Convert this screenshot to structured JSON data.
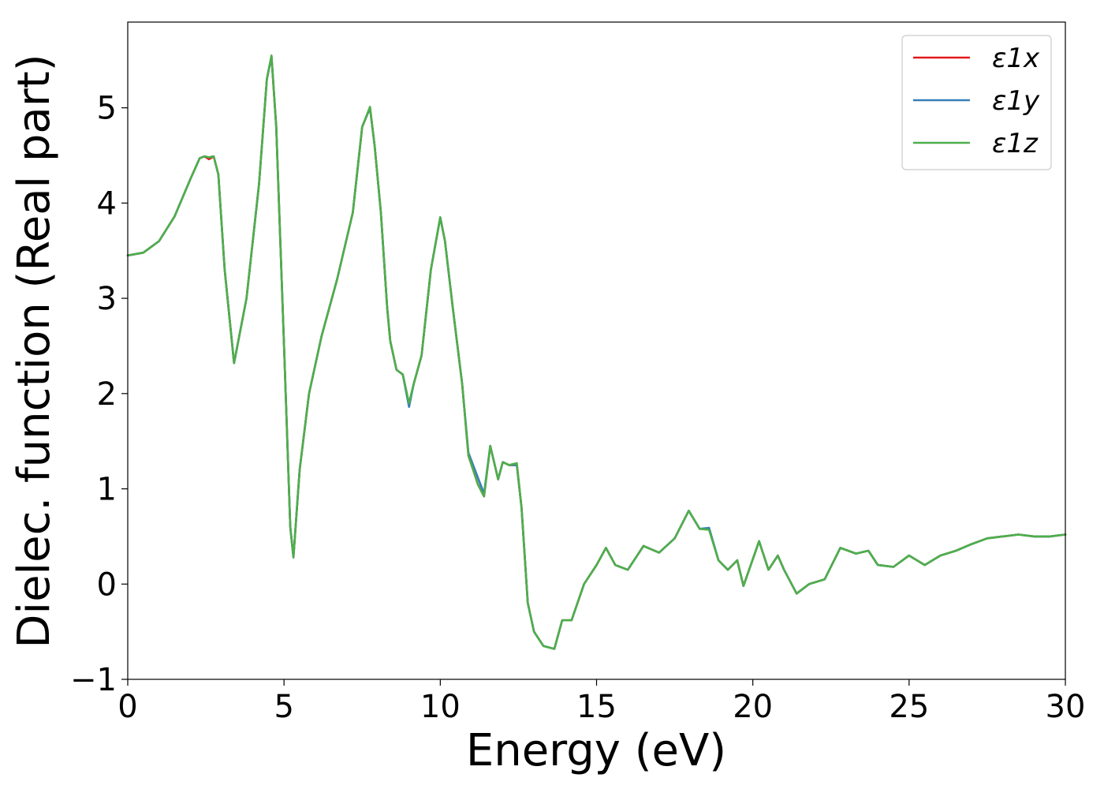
{
  "chart_data": {
    "type": "line",
    "title": "",
    "xlabel": "Energy (eV)",
    "ylabel": "Dielec. function (Real part)",
    "xlim": [
      0,
      30
    ],
    "ylim": [
      -1,
      5.9
    ],
    "xticks": [
      0,
      5,
      10,
      15,
      20,
      25,
      30
    ],
    "xtick_labels": [
      "0",
      "5",
      "10",
      "15",
      "20",
      "25",
      "30"
    ],
    "yticks": [
      -1,
      0,
      1,
      2,
      3,
      4,
      5
    ],
    "ytick_labels": [
      "−1",
      "0",
      "1",
      "2",
      "3",
      "4",
      "5"
    ],
    "grid": false,
    "legend_position": "top-right",
    "series": [
      {
        "name": "ε1x",
        "color": "#e41a1c",
        "x": [
          0,
          0.5,
          1,
          1.5,
          2,
          2.3,
          2.45,
          2.6,
          2.75,
          2.9,
          3.1,
          3.4,
          3.8,
          4.2,
          4.45,
          4.6,
          4.75,
          5.0,
          5.2,
          5.3,
          5.5,
          5.8,
          6.2,
          6.7,
          7.2,
          7.5,
          7.75,
          7.9,
          8.1,
          8.3,
          8.4,
          8.6,
          8.8,
          9.0,
          9.15,
          9.4,
          9.7,
          10.0,
          10.15,
          10.4,
          10.7,
          10.9,
          11.2,
          11.4,
          11.6,
          11.85,
          12.0,
          12.2,
          12.45,
          12.6,
          12.8,
          13.0,
          13.3,
          13.65,
          13.9,
          14.2,
          14.6,
          15.0,
          15.3,
          15.6,
          16.0,
          16.5,
          17.0,
          17.5,
          17.95,
          18.3,
          18.6,
          18.9,
          19.2,
          19.5,
          19.7,
          20.2,
          20.5,
          20.8,
          21.0,
          21.4,
          21.8,
          22.3,
          22.8,
          23.3,
          23.7,
          24.0,
          24.5,
          25.0,
          25.5,
          26.0,
          26.5,
          27.0,
          27.5,
          28.0,
          28.5,
          29.0,
          29.5,
          30.0
        ],
        "y": [
          3.45,
          3.48,
          3.6,
          3.86,
          4.25,
          4.47,
          4.49,
          4.46,
          4.49,
          4.3,
          3.3,
          2.32,
          3.0,
          4.2,
          5.3,
          5.54,
          4.8,
          2.5,
          0.6,
          0.28,
          1.2,
          2.0,
          2.6,
          3.2,
          3.9,
          4.8,
          5.0,
          4.6,
          3.9,
          2.9,
          2.55,
          2.25,
          2.2,
          1.88,
          2.1,
          2.4,
          3.3,
          3.85,
          3.6,
          2.9,
          2.1,
          1.35,
          1.05,
          0.92,
          1.45,
          1.1,
          1.28,
          1.25,
          1.25,
          0.8,
          -0.2,
          -0.5,
          -0.65,
          -0.68,
          -0.38,
          -0.38,
          0.0,
          0.2,
          0.38,
          0.2,
          0.15,
          0.4,
          0.33,
          0.48,
          0.77,
          0.58,
          0.58,
          0.25,
          0.15,
          0.25,
          -0.02,
          0.45,
          0.15,
          0.3,
          0.15,
          -0.1,
          0.0,
          0.05,
          0.38,
          0.32,
          0.35,
          0.2,
          0.18,
          0.3,
          0.2,
          0.3,
          0.35,
          0.42,
          0.48,
          0.5,
          0.52,
          0.5,
          0.5,
          0.52
        ]
      },
      {
        "name": "ε1y",
        "color": "#377eb8",
        "x": [
          0,
          0.5,
          1,
          1.5,
          2,
          2.3,
          2.45,
          2.6,
          2.75,
          2.9,
          3.1,
          3.4,
          3.8,
          4.2,
          4.45,
          4.6,
          4.75,
          5.0,
          5.2,
          5.3,
          5.5,
          5.8,
          6.2,
          6.7,
          7.2,
          7.5,
          7.75,
          7.9,
          8.1,
          8.3,
          8.4,
          8.6,
          8.8,
          9.0,
          9.15,
          9.4,
          9.7,
          10.0,
          10.15,
          10.4,
          10.7,
          10.9,
          11.2,
          11.4,
          11.6,
          11.85,
          12.0,
          12.2,
          12.45,
          12.6,
          12.8,
          13.0,
          13.3,
          13.65,
          13.9,
          14.2,
          14.6,
          15.0,
          15.3,
          15.6,
          16.0,
          16.5,
          17.0,
          17.5,
          17.95,
          18.3,
          18.6,
          18.9,
          19.2,
          19.5,
          19.7,
          20.2,
          20.5,
          20.8,
          21.0,
          21.4,
          21.8,
          22.3,
          22.8,
          23.3,
          23.7,
          24.0,
          24.5,
          25.0,
          25.5,
          26.0,
          26.5,
          27.0,
          27.5,
          28.0,
          28.5,
          29.0,
          29.5,
          30.0
        ],
        "y": [
          3.45,
          3.48,
          3.6,
          3.86,
          4.25,
          4.47,
          4.49,
          4.48,
          4.49,
          4.3,
          3.3,
          2.32,
          3.0,
          4.2,
          5.3,
          5.54,
          4.8,
          2.5,
          0.6,
          0.28,
          1.2,
          2.0,
          2.6,
          3.2,
          3.9,
          4.8,
          5.0,
          4.6,
          3.9,
          2.9,
          2.55,
          2.25,
          2.2,
          1.86,
          2.1,
          2.4,
          3.3,
          3.85,
          3.6,
          2.9,
          2.1,
          1.38,
          1.12,
          0.95,
          1.45,
          1.1,
          1.28,
          1.25,
          1.25,
          0.8,
          -0.2,
          -0.5,
          -0.65,
          -0.68,
          -0.38,
          -0.38,
          0.0,
          0.2,
          0.38,
          0.2,
          0.15,
          0.4,
          0.33,
          0.48,
          0.77,
          0.58,
          0.59,
          0.25,
          0.15,
          0.25,
          -0.02,
          0.45,
          0.15,
          0.3,
          0.15,
          -0.1,
          0.0,
          0.05,
          0.38,
          0.32,
          0.35,
          0.2,
          0.18,
          0.3,
          0.2,
          0.3,
          0.35,
          0.42,
          0.48,
          0.5,
          0.52,
          0.5,
          0.5,
          0.52
        ]
      },
      {
        "name": "ε1z",
        "color": "#4daf4a",
        "x": [
          0,
          0.5,
          1,
          1.5,
          2,
          2.3,
          2.45,
          2.6,
          2.75,
          2.9,
          3.1,
          3.4,
          3.8,
          4.2,
          4.45,
          4.6,
          4.75,
          5.0,
          5.2,
          5.3,
          5.5,
          5.8,
          6.2,
          6.7,
          7.2,
          7.5,
          7.75,
          7.9,
          8.1,
          8.3,
          8.4,
          8.6,
          8.8,
          9.0,
          9.15,
          9.4,
          9.7,
          10.0,
          10.15,
          10.4,
          10.7,
          10.9,
          11.2,
          11.4,
          11.6,
          11.85,
          12.0,
          12.2,
          12.45,
          12.6,
          12.8,
          13.0,
          13.3,
          13.65,
          13.9,
          14.2,
          14.6,
          15.0,
          15.3,
          15.6,
          16.0,
          16.5,
          17.0,
          17.5,
          17.95,
          18.3,
          18.6,
          18.9,
          19.2,
          19.5,
          19.7,
          20.2,
          20.5,
          20.8,
          21.0,
          21.4,
          21.8,
          22.3,
          22.8,
          23.3,
          23.7,
          24.0,
          24.5,
          25.0,
          25.5,
          26.0,
          26.5,
          27.0,
          27.5,
          28.0,
          28.5,
          29.0,
          29.5,
          30.0
        ],
        "y": [
          3.45,
          3.48,
          3.6,
          3.86,
          4.25,
          4.47,
          4.49,
          4.48,
          4.49,
          4.3,
          3.3,
          2.32,
          3.0,
          4.2,
          5.3,
          5.55,
          4.8,
          2.5,
          0.6,
          0.28,
          1.2,
          2.0,
          2.6,
          3.2,
          3.9,
          4.8,
          5.01,
          4.6,
          3.9,
          2.9,
          2.55,
          2.25,
          2.2,
          1.9,
          2.1,
          2.4,
          3.3,
          3.85,
          3.6,
          2.9,
          2.1,
          1.35,
          1.05,
          0.92,
          1.45,
          1.1,
          1.28,
          1.25,
          1.27,
          0.8,
          -0.2,
          -0.5,
          -0.65,
          -0.68,
          -0.38,
          -0.38,
          0.0,
          0.2,
          0.38,
          0.2,
          0.15,
          0.4,
          0.33,
          0.48,
          0.77,
          0.58,
          0.57,
          0.25,
          0.15,
          0.25,
          -0.02,
          0.45,
          0.15,
          0.3,
          0.15,
          -0.1,
          0.0,
          0.05,
          0.38,
          0.32,
          0.35,
          0.2,
          0.18,
          0.3,
          0.2,
          0.3,
          0.35,
          0.42,
          0.48,
          0.5,
          0.52,
          0.5,
          0.5,
          0.52
        ]
      }
    ]
  }
}
